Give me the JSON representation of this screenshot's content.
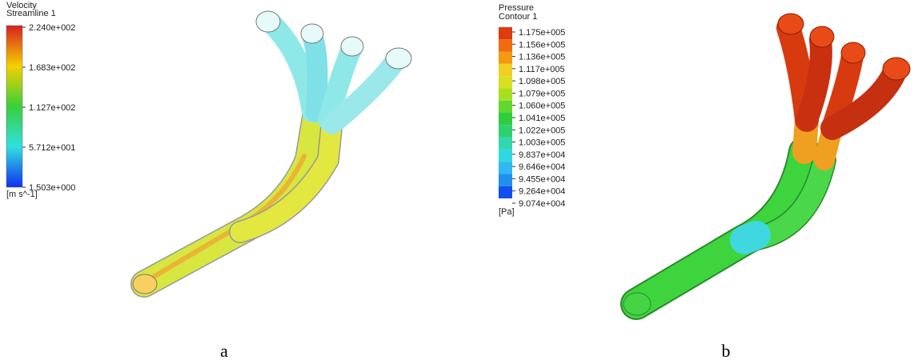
{
  "panels": [
    {
      "legend": {
        "title": "Velocity",
        "subtitle": "Streamline 1",
        "ticks": [
          "2.240e+002",
          "1.683e+002",
          "1.127e+002",
          "5.712e+001",
          "1.503e+000"
        ],
        "unit": "[m s^-1]"
      },
      "label": "a"
    },
    {
      "legend": {
        "title": "Pressure",
        "subtitle": "Contour 1",
        "ticks": [
          "1.175e+005",
          "1.156e+005",
          "1.136e+005",
          "1.117e+005",
          "1.098e+005",
          "1.079e+005",
          "1.060e+005",
          "1.041e+005",
          "1.022e+005",
          "1.003e+005",
          "9.837e+004",
          "9.646e+004",
          "9.455e+004",
          "9.264e+004",
          "9.074e+004"
        ],
        "unit": "[Pa]"
      },
      "label": "b"
    }
  ]
}
